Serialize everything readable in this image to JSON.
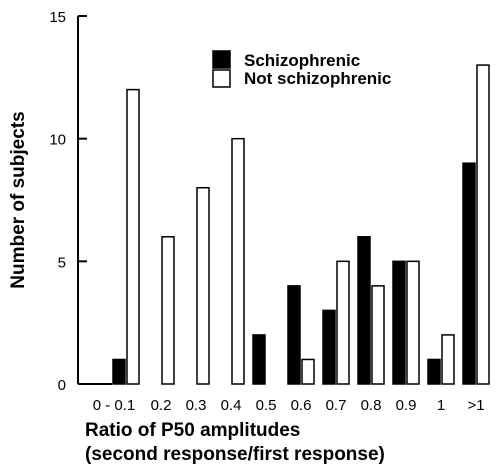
{
  "chart_data": {
    "type": "bar",
    "categories": [
      "0 - 0.1",
      "0.2",
      "0.3",
      "0.4",
      "0.5",
      "0.6",
      "0.7",
      "0.8",
      "0.9",
      "1",
      ">1"
    ],
    "series": [
      {
        "name": "Schizophrenic",
        "color": "#000000",
        "values": [
          1,
          0,
          0,
          0,
          2,
          4,
          3,
          6,
          5,
          1,
          9
        ]
      },
      {
        "name": "Not schizophrenic",
        "color": "#ffffff",
        "values": [
          12,
          6,
          8,
          10,
          0,
          1,
          5,
          4,
          5,
          2,
          13
        ]
      }
    ],
    "ylim": [
      0,
      15
    ],
    "yticks": [
      0,
      5,
      10,
      15
    ],
    "ylabel": "Number of subjects",
    "xlabel_line1": "Ratio of P50 amplitudes",
    "xlabel_line2": "(second response/first response)",
    "legend_position": "top-right",
    "grid": false
  }
}
